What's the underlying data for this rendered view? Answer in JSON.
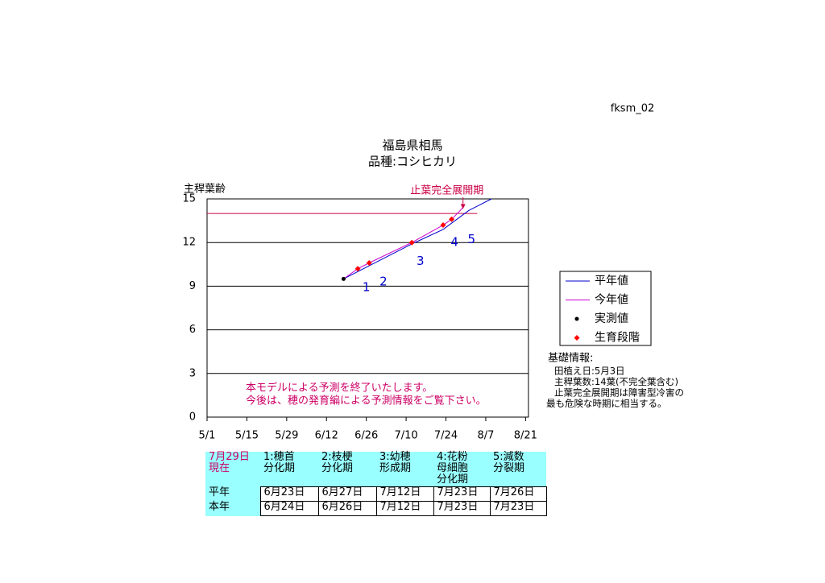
{
  "page_id": "fksm_02",
  "chart_data": {
    "type": "line",
    "title": "福島県相馬",
    "subtitle": "品種:コシヒカリ",
    "y_label": "主稈葉齢",
    "xlim": [
      "5/1",
      "8/22"
    ],
    "xticks": [
      "5/1",
      "5/15",
      "5/29",
      "6/12",
      "6/26",
      "7/10",
      "7/24",
      "8/7",
      "8/21"
    ],
    "ylim": [
      0,
      15
    ],
    "yticks": [
      0,
      3,
      6,
      9,
      12,
      15
    ],
    "grid": true,
    "series": [
      {
        "name": "平年値",
        "style": "line",
        "color": "#0000cc",
        "x": [
          "6/18",
          "6/27",
          "7/12",
          "7/23",
          "8/1",
          "8/9"
        ],
        "values": [
          9.5,
          10.4,
          11.9,
          12.9,
          14.2,
          15.0
        ]
      },
      {
        "name": "今年値",
        "style": "line",
        "color": "#cc00cc",
        "x": [
          "6/18",
          "6/23",
          "6/27",
          "7/12",
          "7/23",
          "7/26",
          "7/30"
        ],
        "values": [
          9.5,
          10.2,
          10.6,
          12.0,
          13.2,
          13.6,
          14.4
        ]
      },
      {
        "name": "実測値",
        "style": "dot",
        "color": "#000000",
        "x": [
          "6/18"
        ],
        "values": [
          9.5
        ]
      },
      {
        "name": "生育段階",
        "style": "diamond",
        "color": "#ff0000",
        "x": [
          "6/23",
          "6/27",
          "7/12",
          "7/23",
          "7/26"
        ],
        "values": [
          10.2,
          10.6,
          12.0,
          13.2,
          13.6
        ]
      }
    ],
    "stage_labels": [
      {
        "text": "1",
        "x": "6/26",
        "y": 8.9
      },
      {
        "text": "2",
        "x": "7/2",
        "y": 9.3
      },
      {
        "text": "3",
        "x": "7/15",
        "y": 10.7
      },
      {
        "text": "4",
        "x": "7/27",
        "y": 12.0
      },
      {
        "text": "5",
        "x": "8/2",
        "y": 12.2
      }
    ],
    "stage_label_color": "#0000cc",
    "reference_line": {
      "y": 14,
      "x": [
        "5/1",
        "8/4"
      ],
      "color": "#cc0044"
    },
    "annotation": {
      "text": "止葉完全展開期",
      "x": "7/30",
      "y": 14.2,
      "color": "#cc0044"
    },
    "note": [
      "本モデルによる予測を終了いたします。",
      "今後は、穂の発育編による予測情報をご覧下さい。"
    ],
    "note_color": "#cc0066"
  },
  "info": {
    "title": "基礎情報:",
    "lines": [
      "田植え日:5月3日",
      "主稈葉数:14葉(不完全葉含む)",
      "止葉完全展開期は障害型冷害の",
      "最も危険な時期に相当する。"
    ]
  },
  "table": {
    "header": [
      [
        "7月29日",
        "現在"
      ],
      [
        "1:穂首",
        "分化期"
      ],
      [
        "2:枝梗",
        "分化期"
      ],
      [
        "3:幼穂",
        "形成期"
      ],
      [
        "4:花粉",
        "母細胞",
        "分化期"
      ],
      [
        "5:減数",
        "分裂期"
      ]
    ],
    "rows": [
      [
        "平年",
        "6月23日",
        "6月27日",
        "7月12日",
        "7月23日",
        "7月26日"
      ],
      [
        "本年",
        "6月24日",
        "6月26日",
        "7月12日",
        "7月23日",
        "7月23日"
      ]
    ]
  }
}
